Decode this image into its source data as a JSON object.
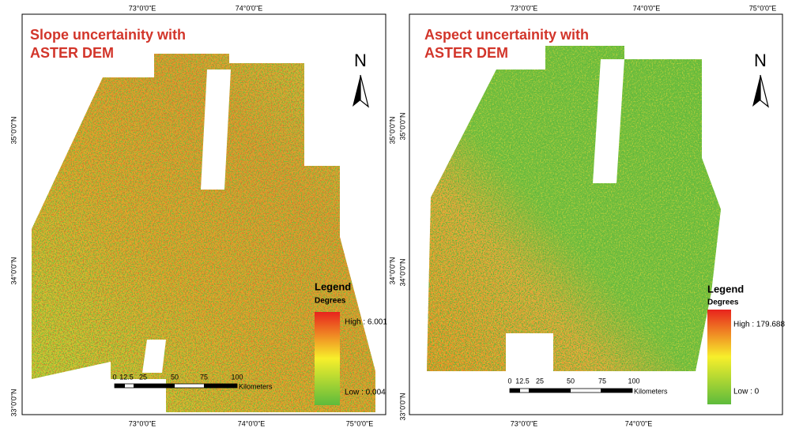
{
  "panels": [
    {
      "title_lines": [
        "Slope uncertainity with",
        "ASTER DEM"
      ],
      "north": "N",
      "legend": {
        "title": "Legend",
        "subtitle": "Degrees",
        "high": "High : 6.001",
        "low": "Low : 0.004"
      },
      "scale": {
        "ticks": [
          "0",
          "12.5",
          "25",
          "50",
          "75",
          "100"
        ],
        "unit": "Kilometers"
      },
      "top_labels": [
        "73°0'0\"E",
        "74°0'0\"E"
      ],
      "bottom_labels": [
        "73°0'0\"E",
        "74°0'0\"E",
        "75°0'0\"E"
      ],
      "left_labels": [
        "35°0'0\"N",
        "34°0'0\"N",
        "33°0'0\"N"
      ],
      "right_labels": [
        "35°0'0\"N",
        "34°0'0\"N"
      ]
    },
    {
      "title_lines": [
        "Aspect uncertainity with",
        "ASTER DEM"
      ],
      "north": "N",
      "legend": {
        "title": "Legend",
        "subtitle": "Degrees",
        "high": "High : 179.688",
        "low": "Low : 0"
      },
      "scale": {
        "ticks": [
          "0",
          "12.5",
          "25",
          "50",
          "75",
          "100"
        ],
        "unit": "Kilometers"
      },
      "top_labels": [
        "73°0'0\"E",
        "74°0'0\"E",
        "75°0'0\"E"
      ],
      "bottom_labels": [
        "73°0'0\"E",
        "74°0'0\"E"
      ],
      "left_labels": [
        "35°0'0\"N",
        "34°0'0\"N",
        "33°0'0\"N"
      ],
      "right_labels": []
    }
  ]
}
